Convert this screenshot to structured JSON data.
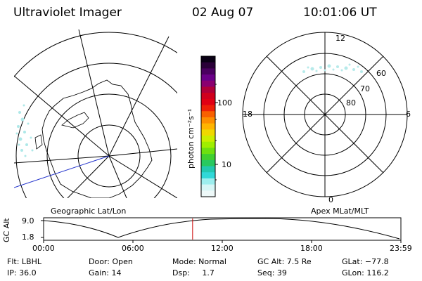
{
  "header": {
    "title": "Ultraviolet Imager",
    "date": "02 Aug 07",
    "time": "10:01:06 UT"
  },
  "left_map": {
    "caption": "Geographic Lat/Lon"
  },
  "right_map": {
    "caption": "Apex MLat/MLT",
    "mlt_labels": {
      "top": "12",
      "right": "6",
      "bottom": "0",
      "left": "18"
    },
    "mlat_labels": [
      "60",
      "70",
      "80"
    ]
  },
  "colorbar": {
    "unit_label": "photon cm⁻²s⁻¹",
    "ticks": [
      "100",
      "10"
    ],
    "colors": [
      "#0a0015",
      "#2a0038",
      "#4a0060",
      "#6a0088",
      "#8a0070",
      "#b00038",
      "#d0001c",
      "#e00014",
      "#ee2008",
      "#f86000",
      "#fd8e00",
      "#ffb400",
      "#f0d800",
      "#ccee00",
      "#a0ee00",
      "#6ee010",
      "#40d030",
      "#28c860",
      "#22c8b0",
      "#30d8d8",
      "#9ceeee",
      "#d6f6f6",
      "#eef9f9"
    ]
  },
  "altitude_plot": {
    "axis_title": "GC Alt",
    "y_ticks": [
      "9.0",
      "1.8"
    ],
    "x_ticks": [
      "00:00",
      "06:00",
      "12:00",
      "18:00",
      "23:59"
    ],
    "current_time_fraction": 0.417,
    "current_marker_color": "#cc0000"
  },
  "status": {
    "flt": "Flt: LBHL",
    "ip": "IP: 36.0",
    "door": "Door: Open",
    "gain": "Gain: 14",
    "mode": "Mode: Normal",
    "dsp": "Dsp:     1.7",
    "gc_alt": "GC Alt: 7.5 Re",
    "seq": "Seq: 39",
    "glat": "GLat: −77.8",
    "glon": "GLon: 116.2"
  }
}
